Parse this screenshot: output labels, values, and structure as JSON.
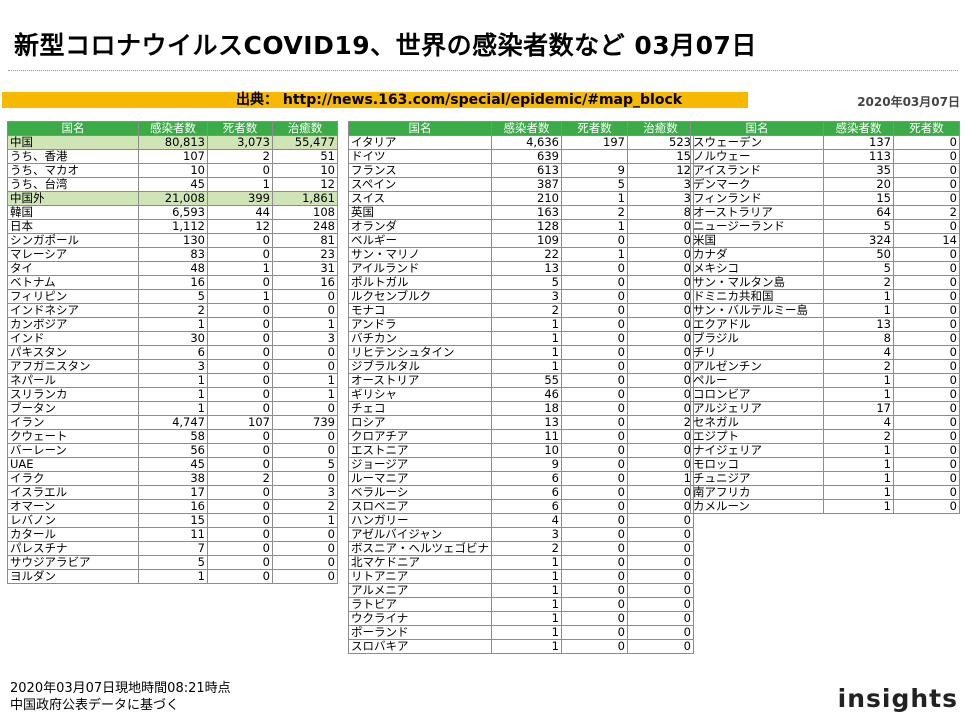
{
  "title": "新型コロナウイルスCOVID19、世界の感染者数など 03月07日",
  "source": "出典： http://news.163.com/special/epidemic/#map_block",
  "date": "2020年03月07日",
  "headers": [
    "国名",
    "感染者数",
    "死者数",
    "治癒数"
  ],
  "headers_short": [
    "国名",
    "感染者数",
    "死者数"
  ],
  "table1": [
    [
      "中国",
      "80,813",
      "3,073",
      "55,477"
    ],
    [
      "うち、香港",
      "107",
      "2",
      "51"
    ],
    [
      "うち、マカオ",
      "10",
      "0",
      "10"
    ],
    [
      "うち、台湾",
      "45",
      "1",
      "12"
    ],
    [
      "中国外",
      "21,008",
      "399",
      "1,861"
    ],
    [
      "韓国",
      "6,593",
      "44",
      "108"
    ],
    [
      "日本",
      "1,112",
      "12",
      "248"
    ],
    [
      "シンガポール",
      "130",
      "0",
      "81"
    ],
    [
      "マレーシア",
      "83",
      "0",
      "23"
    ],
    [
      "タイ",
      "48",
      "1",
      "31"
    ],
    [
      "ベトナム",
      "16",
      "0",
      "16"
    ],
    [
      "フィリピン",
      "5",
      "1",
      "0"
    ],
    [
      "インドネシア",
      "2",
      "0",
      "0"
    ],
    [
      "カンボジア",
      "1",
      "0",
      "1"
    ],
    [
      "インド",
      "30",
      "0",
      "3"
    ],
    [
      "パキスタン",
      "6",
      "0",
      "0"
    ],
    [
      "アフガニスタン",
      "3",
      "0",
      "0"
    ],
    [
      "ネパール",
      "1",
      "0",
      "1"
    ],
    [
      "スリランカ",
      "1",
      "0",
      "1"
    ],
    [
      "ブータン",
      "1",
      "0",
      "0"
    ],
    [
      "イラン",
      "4,747",
      "107",
      "739"
    ],
    [
      "クウェート",
      "58",
      "0",
      "0"
    ],
    [
      "バーレーン",
      "56",
      "0",
      "0"
    ],
    [
      "UAE",
      "45",
      "0",
      "5"
    ],
    [
      "イラク",
      "38",
      "2",
      "0"
    ],
    [
      "イスラエル",
      "17",
      "0",
      "3"
    ],
    [
      "オマーン",
      "16",
      "0",
      "2"
    ],
    [
      "レバノン",
      "15",
      "0",
      "1"
    ],
    [
      "カタール",
      "11",
      "0",
      "0"
    ],
    [
      "パレスチナ",
      "7",
      "0",
      "0"
    ],
    [
      "サウジアラビア",
      "5",
      "0",
      "0"
    ],
    [
      "ヨルダン",
      "1",
      "0",
      "0"
    ]
  ],
  "table2": [
    [
      "イタリア",
      "4,636",
      "197",
      "523"
    ],
    [
      "ドイツ",
      "639",
      "",
      "15"
    ],
    [
      "フランス",
      "613",
      "9",
      "12"
    ],
    [
      "スペイン",
      "387",
      "5",
      "3"
    ],
    [
      "スイス",
      "210",
      "1",
      "3"
    ],
    [
      "英国",
      "163",
      "2",
      "8"
    ],
    [
      "オランダ",
      "128",
      "1",
      "0"
    ],
    [
      "ベルギー",
      "109",
      "0",
      "0"
    ],
    [
      "サン・マリノ",
      "22",
      "1",
      "0"
    ],
    [
      "アイルランド",
      "13",
      "0",
      "0"
    ],
    [
      "ポルトガル",
      "5",
      "0",
      "0"
    ],
    [
      "ルクセンブルク",
      "3",
      "0",
      "0"
    ],
    [
      "モナコ",
      "2",
      "0",
      "0"
    ],
    [
      "アンドラ",
      "1",
      "0",
      "0"
    ],
    [
      "バチカン",
      "1",
      "0",
      "0"
    ],
    [
      "リヒテンシュタイン",
      "1",
      "0",
      "0"
    ],
    [
      "ジブラルタル",
      "1",
      "0",
      "0"
    ],
    [
      "オーストリア",
      "55",
      "0",
      "0"
    ],
    [
      "ギリシャ",
      "46",
      "0",
      "0"
    ],
    [
      "チェコ",
      "18",
      "0",
      "0"
    ],
    [
      "ロシア",
      "13",
      "0",
      "2"
    ],
    [
      "クロアチア",
      "11",
      "0",
      "0"
    ],
    [
      "エストニア",
      "10",
      "0",
      "0"
    ],
    [
      "ジョージア",
      "9",
      "0",
      "0"
    ],
    [
      "ルーマニア",
      "6",
      "0",
      "1"
    ],
    [
      "ベラルーシ",
      "6",
      "0",
      "0"
    ],
    [
      "スロベニア",
      "6",
      "0",
      "0"
    ],
    [
      "ハンガリー",
      "4",
      "0",
      "0"
    ],
    [
      "アゼルバイジャン",
      "3",
      "0",
      "0"
    ],
    [
      "ボスニア・ヘルツェゴビナ",
      "2",
      "0",
      "0"
    ],
    [
      "北マケドニア",
      "1",
      "0",
      "0"
    ],
    [
      "リトアニア",
      "1",
      "0",
      "0"
    ],
    [
      "アルメニア",
      "1",
      "0",
      "0"
    ],
    [
      "ラトビア",
      "1",
      "0",
      "0"
    ],
    [
      "ウクライナ",
      "1",
      "0",
      "0"
    ],
    [
      "ポーランド",
      "1",
      "0",
      "0"
    ],
    [
      "スロバキア",
      "1",
      "0",
      "0"
    ]
  ],
  "table3": [
    [
      "スウェーデン",
      "137",
      "0"
    ],
    [
      "ノルウェー",
      "113",
      "0"
    ],
    [
      "アイスランド",
      "35",
      "0"
    ],
    [
      "デンマーク",
      "20",
      "0"
    ],
    [
      "フィンランド",
      "15",
      "0"
    ],
    [
      "オーストラリア",
      "64",
      "2"
    ],
    [
      "ニュージーランド",
      "5",
      "0"
    ],
    [
      "米国",
      "324",
      "14"
    ],
    [
      "カナダ",
      "50",
      "0"
    ],
    [
      "メキシコ",
      "5",
      "0"
    ],
    [
      "サン・マルタン島",
      "2",
      "0"
    ],
    [
      "ドミニカ共和国",
      "1",
      "0"
    ],
    [
      "サン・バルテルミー島",
      "1",
      "0"
    ],
    [
      "エクアドル",
      "13",
      "0"
    ],
    [
      "ブラジル",
      "8",
      "0"
    ],
    [
      "チリ",
      "4",
      "0"
    ],
    [
      "アルゼンチン",
      "2",
      "0"
    ],
    [
      "ペルー",
      "1",
      "0"
    ],
    [
      "コロンビア",
      "1",
      "0"
    ],
    [
      "アルジェリア",
      "17",
      "0"
    ],
    [
      "セネガル",
      "4",
      "0"
    ],
    [
      "エジプト",
      "2",
      "0"
    ],
    [
      "ナイジェリア",
      "1",
      "0"
    ],
    [
      "モロッコ",
      "1",
      "0"
    ],
    [
      "チュニジア",
      "1",
      "0"
    ],
    [
      "南アフリカ",
      "1",
      "0"
    ],
    [
      "カメルーン",
      "1",
      "0"
    ]
  ],
  "footer": [
    "2020年03月07日現地時間08:21時点",
    "中国政府公表データに基づく"
  ],
  "logo": "insights"
}
